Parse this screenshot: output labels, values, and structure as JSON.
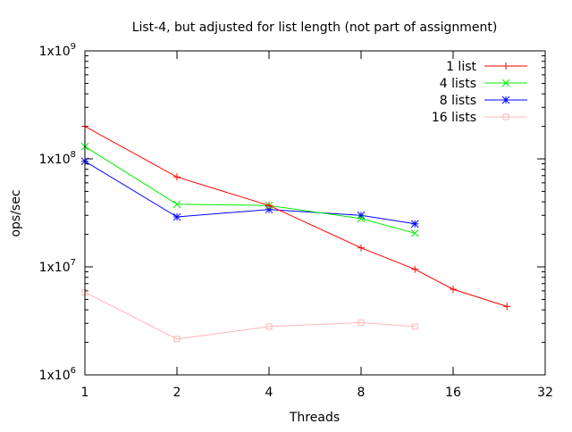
{
  "chart_data": {
    "type": "line",
    "title": "List-4, but adjusted for list length (not part of assignment)",
    "xlabel": "Threads",
    "ylabel": "ops/sec",
    "x_scale": "log2",
    "y_scale": "log10",
    "xlim": [
      1,
      32
    ],
    "ylim": [
      1000000,
      1000000000
    ],
    "x_ticks": [
      {
        "value": 1,
        "label": "1"
      },
      {
        "value": 2,
        "label": "2"
      },
      {
        "value": 4,
        "label": "4"
      },
      {
        "value": 8,
        "label": "8"
      },
      {
        "value": 16,
        "label": "16"
      },
      {
        "value": 32,
        "label": "32"
      }
    ],
    "y_ticks": [
      {
        "value": 1000000,
        "base": "1x10",
        "exp": "6"
      },
      {
        "value": 10000000,
        "base": "1x10",
        "exp": "7"
      },
      {
        "value": 100000000,
        "base": "1x10",
        "exp": "8"
      },
      {
        "value": 1000000000,
        "base": "1x10",
        "exp": "9"
      }
    ],
    "grid": false,
    "legend_position": "top-right",
    "series": [
      {
        "name": "1 list",
        "color": "#ff0000",
        "marker": "plus",
        "points": [
          [
            1,
            200000000
          ],
          [
            2,
            68000000
          ],
          [
            4,
            37000000
          ],
          [
            8,
            15000000
          ],
          [
            12,
            9500000
          ],
          [
            16,
            6200000
          ],
          [
            24,
            4300000
          ]
        ]
      },
      {
        "name": "4 lists",
        "color": "#00ee00",
        "marker": "cross",
        "points": [
          [
            1,
            130000000
          ],
          [
            2,
            38000000
          ],
          [
            4,
            37000000
          ],
          [
            8,
            28000000
          ],
          [
            12,
            20500000
          ]
        ]
      },
      {
        "name": "8 lists",
        "color": "#0000ff",
        "marker": "star",
        "points": [
          [
            1,
            95000000
          ],
          [
            2,
            29000000
          ],
          [
            4,
            34000000
          ],
          [
            8,
            30000000
          ],
          [
            12,
            25000000
          ]
        ]
      },
      {
        "name": "16 lists",
        "color": "#ffb6b6",
        "marker": "square",
        "points": [
          [
            1,
            5800000
          ],
          [
            2,
            2150000
          ],
          [
            4,
            2800000
          ],
          [
            8,
            3050000
          ],
          [
            12,
            2800000
          ]
        ]
      }
    ]
  }
}
